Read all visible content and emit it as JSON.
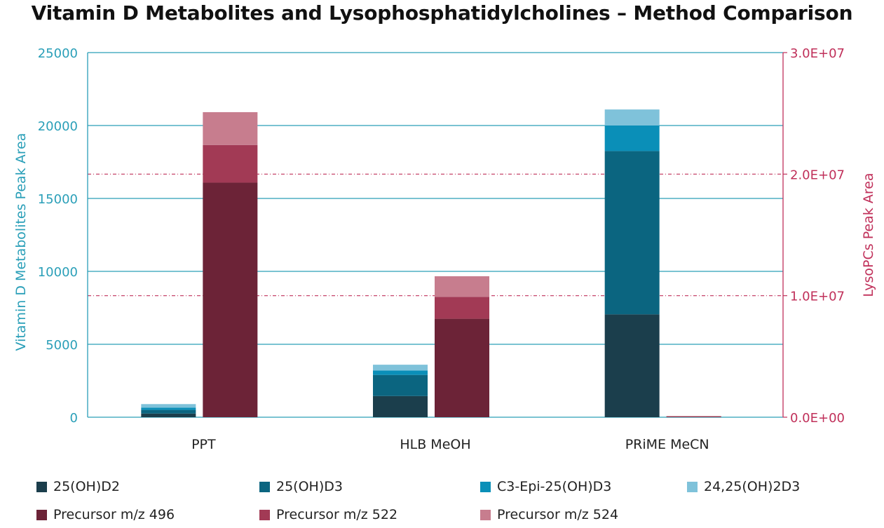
{
  "title": "Vitamin D Metabolites and Lysophosphatidylcholines – Method Comparison",
  "colors": {
    "left_axis": "#2a9fb8",
    "right_axis": "#c0305a",
    "grid": "#2a9fb8",
    "right_grid": "#c0305a"
  },
  "chart_data": {
    "type": "bar",
    "stacked": true,
    "categories": [
      "PPT",
      "HLB MeOH",
      "PRiME MeCN"
    ],
    "y_left": {
      "label": "Vitamin D Metabolites Peak Area",
      "range": [
        0,
        25000
      ],
      "ticks": [
        "0",
        "5000",
        "10000",
        "15000",
        "20000",
        "25000"
      ],
      "tick_values": [
        0,
        5000,
        10000,
        15000,
        20000,
        25000
      ]
    },
    "y_right": {
      "label": "LysoPCs Peak Area",
      "range": [
        0,
        30000000
      ],
      "ticks": [
        "0.0E+00",
        "1.0E+07",
        "2.0E+07",
        "3.0E+07"
      ],
      "tick_values": [
        0,
        10000000,
        20000000,
        30000000
      ]
    },
    "grid": true,
    "legend_position": "bottom",
    "stacks": [
      {
        "axis": "left",
        "series": [
          {
            "name": "25(OH)D2",
            "color": "#1b3e4c",
            "values": [
              250,
              1450,
              7050
            ]
          },
          {
            "name": "25(OH)D3",
            "color": "#0b6580",
            "values": [
              250,
              1450,
              11200
            ]
          },
          {
            "name": "C3-Epi-25(OH)D3",
            "color": "#0a8fb8",
            "values": [
              150,
              300,
              1750
            ]
          },
          {
            "name": "24,25(OH)2D3",
            "color": "#7fc2da",
            "values": [
              250,
              400,
              1100
            ]
          }
        ]
      },
      {
        "axis": "right",
        "series": [
          {
            "name": "Precursor m/z 496",
            "color": "#6c2337",
            "values": [
              19300000,
              8100000,
              50000
            ]
          },
          {
            "name": "Precursor m/z 522",
            "color": "#a23a55",
            "values": [
              3100000,
              1800000,
              30000
            ]
          },
          {
            "name": "Precursor m/z 524",
            "color": "#c77d8e",
            "values": [
              2700000,
              1700000,
              20000
            ]
          }
        ]
      }
    ]
  },
  "legend": [
    {
      "label": "25(OH)D2",
      "color": "#1b3e4c"
    },
    {
      "label": "25(OH)D3",
      "color": "#0b6580"
    },
    {
      "label": "C3-Epi-25(OH)D3",
      "color": "#0a8fb8"
    },
    {
      "label": "24,25(OH)2D3",
      "color": "#7fc2da"
    },
    {
      "label": "Precursor m/z 496",
      "color": "#6c2337"
    },
    {
      "label": "Precursor m/z 522",
      "color": "#a23a55"
    },
    {
      "label": "Precursor m/z 524",
      "color": "#c77d8e"
    }
  ]
}
